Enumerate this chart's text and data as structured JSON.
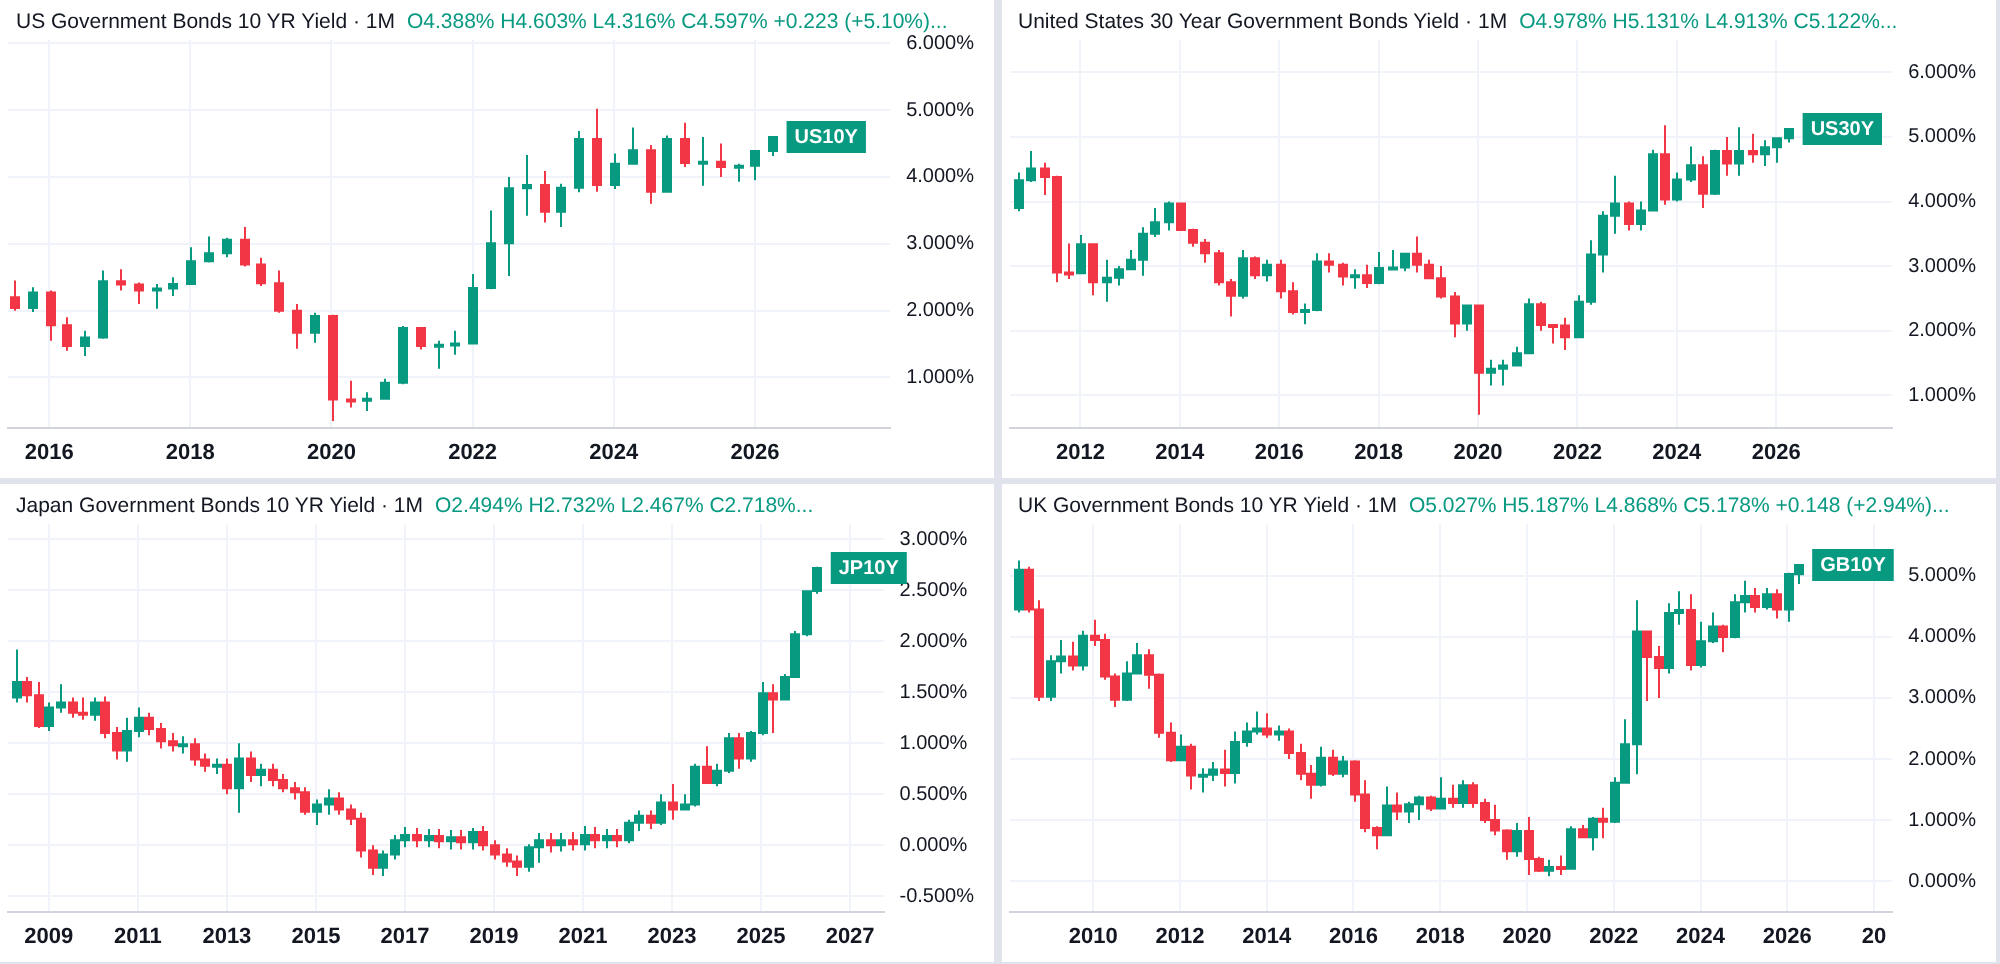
{
  "chart_data": [
    {
      "type": "candlestick",
      "title": "US Government Bonds 10 YR Yield · 1M",
      "subtitle": "O4.388%  H4.603%  L4.316%  C4.597%  +0.223 (+5.10%)...",
      "colors": [
        "#f23645",
        "#089981",
        "#f23645",
        "#f23645",
        "#089981",
        "#089981",
        "#f23645",
        "#f23645",
        "#089981",
        "#089981",
        "#089981",
        "#089981",
        "#089981",
        "#f23645",
        "#f23645",
        "#f23645",
        "#f23645",
        "#089981",
        "#f23645",
        "#f23645",
        "#089981",
        "#089981",
        "#089981",
        "#f23645",
        "#089981",
        "#089981",
        "#089981",
        "#089981",
        "#089981",
        "#089981",
        "#f23645",
        "#089981",
        "#089981",
        "#f23645",
        "#089981",
        "#089981",
        "#f23645",
        "#089981",
        "#f23645",
        "#089981",
        "#f23645",
        "#089981",
        "#089981",
        "#089981"
      ],
      "grid": true,
      "xlim": [
        "2015-06",
        "2027-12"
      ],
      "xticks": [
        "2016",
        "2018",
        "2020",
        "2022",
        "2024",
        "2026"
      ],
      "ylim": [
        0.25,
        6.05
      ],
      "yticks": [
        {
          "value": 1,
          "label": "1.000%"
        },
        {
          "value": 2,
          "label": "2.000%"
        },
        {
          "value": 3,
          "label": "3.000%"
        },
        {
          "value": 4,
          "label": "4.000%"
        },
        {
          "value": 5,
          "label": "5.000%"
        },
        {
          "value": 6,
          "label": "6.000%"
        }
      ],
      "annotations": [
        {
          "text": "US10Y",
          "y": 4.597
        }
      ],
      "x": [
        "2015-07",
        "2015-10",
        "2016-01",
        "2016-04",
        "2016-07",
        "2016-10",
        "2017-01",
        "2017-04",
        "2017-07",
        "2017-10",
        "2018-01",
        "2018-04",
        "2018-07",
        "2018-10",
        "2019-01",
        "2019-04",
        "2019-07",
        "2019-10",
        "2020-01",
        "2020-04",
        "2020-07",
        "2020-10",
        "2021-01",
        "2021-04",
        "2021-07",
        "2021-10",
        "2022-01",
        "2022-04",
        "2022-07",
        "2022-10",
        "2023-01",
        "2023-04",
        "2023-07",
        "2023-10",
        "2024-01",
        "2024-04",
        "2024-07",
        "2024-10",
        "2025-01",
        "2025-04",
        "2025-07",
        "2025-10",
        "2026-01",
        "2026-04"
      ],
      "ohlc": [
        [
          2.2,
          2.45,
          2.0,
          2.04
        ],
        [
          2.04,
          2.35,
          1.98,
          2.27
        ],
        [
          2.27,
          2.3,
          1.55,
          1.78
        ],
        [
          1.78,
          1.9,
          1.4,
          1.47
        ],
        [
          1.47,
          1.7,
          1.32,
          1.6
        ],
        [
          1.6,
          2.6,
          1.58,
          2.44
        ],
        [
          2.44,
          2.62,
          2.3,
          2.39
        ],
        [
          2.39,
          2.42,
          2.1,
          2.3
        ],
        [
          2.3,
          2.4,
          2.03,
          2.33
        ],
        [
          2.33,
          2.5,
          2.22,
          2.4
        ],
        [
          2.4,
          2.95,
          2.4,
          2.74
        ],
        [
          2.74,
          3.11,
          2.72,
          2.86
        ],
        [
          2.86,
          3.09,
          2.8,
          3.06
        ],
        [
          3.06,
          3.25,
          2.66,
          2.69
        ],
        [
          2.69,
          2.79,
          2.37,
          2.41
        ],
        [
          2.41,
          2.6,
          1.97,
          2.0
        ],
        [
          2.0,
          2.1,
          1.43,
          1.67
        ],
        [
          1.67,
          1.97,
          1.52,
          1.92
        ],
        [
          1.92,
          1.94,
          0.35,
          0.67
        ],
        [
          0.67,
          0.95,
          0.55,
          0.66
        ],
        [
          0.66,
          0.78,
          0.5,
          0.68
        ],
        [
          0.68,
          0.98,
          0.68,
          0.92
        ],
        [
          0.92,
          1.77,
          0.9,
          1.74
        ],
        [
          1.74,
          1.74,
          1.42,
          1.47
        ],
        [
          1.47,
          1.55,
          1.13,
          1.49
        ],
        [
          1.49,
          1.7,
          1.34,
          1.51
        ],
        [
          1.51,
          2.55,
          1.5,
          2.34
        ],
        [
          2.34,
          3.5,
          2.32,
          3.01
        ],
        [
          3.01,
          4.0,
          2.52,
          3.83
        ],
        [
          3.83,
          4.33,
          3.42,
          3.88
        ],
        [
          3.88,
          4.09,
          3.32,
          3.48
        ],
        [
          3.48,
          3.9,
          3.25,
          3.84
        ],
        [
          3.84,
          4.69,
          3.77,
          4.57
        ],
        [
          4.57,
          5.02,
          3.78,
          3.88
        ],
        [
          3.88,
          4.35,
          3.82,
          4.2
        ],
        [
          4.2,
          4.74,
          4.19,
          4.4
        ],
        [
          4.4,
          4.48,
          3.6,
          3.78
        ],
        [
          3.78,
          4.62,
          3.77,
          4.57
        ],
        [
          4.57,
          4.81,
          4.15,
          4.21
        ],
        [
          4.21,
          4.6,
          3.87,
          4.23
        ],
        [
          4.23,
          4.5,
          4.0,
          4.15
        ],
        [
          4.15,
          4.2,
          3.93,
          4.17
        ],
        [
          4.17,
          4.4,
          3.95,
          4.39
        ],
        [
          4.388,
          4.603,
          4.316,
          4.597
        ]
      ]
    },
    {
      "type": "candlestick",
      "title": "United States 30 Year Government Bonds Yield · 1M",
      "subtitle": "O4.978%  H5.131%  L4.913%  C5.122%...",
      "colors": [
        "#089981",
        "#089981",
        "#f23645",
        "#f23645",
        "#f23645",
        "#089981",
        "#f23645",
        "#089981",
        "#089981",
        "#089981",
        "#089981",
        "#089981",
        "#089981",
        "#f23645",
        "#f23645",
        "#f23645",
        "#f23645",
        "#f23645",
        "#089981",
        "#f23645",
        "#089981",
        "#f23645",
        "#f23645",
        "#089981",
        "#089981",
        "#f23645",
        "#f23645",
        "#089981",
        "#f23645",
        "#089981",
        "#089981",
        "#089981",
        "#f23645",
        "#f23645",
        "#f23645",
        "#f23645",
        "#089981",
        "#f23645",
        "#089981",
        "#089981",
        "#089981",
        "#089981",
        "#f23645",
        "#f23645",
        "#f23645",
        "#089981",
        "#089981",
        "#089981",
        "#089981",
        "#f23645",
        "#089981",
        "#089981",
        "#f23645",
        "#089981",
        "#089981",
        "#f23645",
        "#089981",
        "#f23645",
        "#089981",
        "#f23645",
        "#089981",
        "#089981",
        "#089981"
      ],
      "grid": true,
      "xlim": [
        "2010-08",
        "2028-05"
      ],
      "xticks": [
        "2012",
        "2014",
        "2016",
        "2018",
        "2020",
        "2022",
        "2024",
        "2026"
      ],
      "ylim": [
        0.5,
        6.5
      ],
      "yticks": [
        {
          "value": 1,
          "label": "1.000%"
        },
        {
          "value": 2,
          "label": "2.000%"
        },
        {
          "value": 3,
          "label": "3.000%"
        },
        {
          "value": 4,
          "label": "4.000%"
        },
        {
          "value": 5,
          "label": "5.000%"
        },
        {
          "value": 6,
          "label": "6.000%"
        }
      ],
      "annotations": [
        {
          "text": "US30Y",
          "y": 5.122
        }
      ],
      "x": [
        "2010-10",
        "2011-01",
        "2011-04",
        "2011-07",
        "2011-10",
        "2012-01",
        "2012-04",
        "2012-07",
        "2012-10",
        "2013-01",
        "2013-04",
        "2013-07",
        "2013-10",
        "2014-01",
        "2014-04",
        "2014-07",
        "2014-10",
        "2015-01",
        "2015-04",
        "2015-07",
        "2015-10",
        "2016-01",
        "2016-04",
        "2016-07",
        "2016-10",
        "2017-01",
        "2017-04",
        "2017-07",
        "2017-10",
        "2018-01",
        "2018-04",
        "2018-07",
        "2018-10",
        "2019-01",
        "2019-04",
        "2019-07",
        "2019-10",
        "2020-01",
        "2020-04",
        "2020-07",
        "2020-10",
        "2021-01",
        "2021-04",
        "2021-07",
        "2021-10",
        "2022-01",
        "2022-04",
        "2022-07",
        "2022-10",
        "2023-01",
        "2023-04",
        "2023-07",
        "2023-10",
        "2024-01",
        "2024-04",
        "2024-07",
        "2024-10",
        "2025-01",
        "2025-04",
        "2025-07",
        "2025-10",
        "2026-01",
        "2026-04"
      ],
      "ohlc": [
        [
          3.9,
          4.45,
          3.85,
          4.33
        ],
        [
          4.33,
          4.78,
          4.3,
          4.51
        ],
        [
          4.51,
          4.6,
          4.1,
          4.38
        ],
        [
          4.38,
          4.4,
          2.75,
          2.9
        ],
        [
          2.9,
          3.35,
          2.8,
          2.89
        ],
        [
          2.89,
          3.48,
          2.88,
          3.34
        ],
        [
          3.34,
          3.35,
          2.55,
          2.75
        ],
        [
          2.75,
          3.1,
          2.45,
          2.82
        ],
        [
          2.82,
          3.0,
          2.7,
          2.95
        ],
        [
          2.95,
          3.25,
          2.95,
          3.1
        ],
        [
          3.1,
          3.6,
          2.85,
          3.5
        ],
        [
          3.5,
          3.9,
          3.45,
          3.68
        ],
        [
          3.68,
          4.0,
          3.55,
          3.97
        ],
        [
          3.97,
          3.97,
          3.55,
          3.56
        ],
        [
          3.56,
          3.58,
          3.3,
          3.36
        ],
        [
          3.36,
          3.42,
          3.05,
          3.2
        ],
        [
          3.2,
          3.25,
          2.7,
          2.75
        ],
        [
          2.75,
          2.8,
          2.22,
          2.54
        ],
        [
          2.54,
          3.25,
          2.5,
          3.12
        ],
        [
          3.12,
          3.15,
          2.8,
          2.86
        ],
        [
          2.86,
          3.1,
          2.76,
          3.02
        ],
        [
          3.02,
          3.1,
          2.5,
          2.61
        ],
        [
          2.61,
          2.75,
          2.25,
          2.29
        ],
        [
          2.29,
          2.42,
          2.1,
          2.32
        ],
        [
          2.32,
          3.2,
          2.3,
          3.07
        ],
        [
          3.07,
          3.2,
          2.9,
          3.02
        ],
        [
          3.02,
          3.05,
          2.7,
          2.84
        ],
        [
          2.84,
          2.95,
          2.65,
          2.86
        ],
        [
          2.86,
          3.02,
          2.66,
          2.74
        ],
        [
          2.74,
          3.22,
          2.72,
          2.97
        ],
        [
          2.97,
          3.25,
          2.95,
          2.98
        ],
        [
          2.98,
          3.2,
          2.92,
          3.19
        ],
        [
          3.19,
          3.46,
          2.9,
          3.02
        ],
        [
          3.02,
          3.1,
          2.8,
          2.81
        ],
        [
          2.81,
          3.0,
          2.5,
          2.53
        ],
        [
          2.53,
          2.6,
          1.9,
          2.11
        ],
        [
          2.11,
          2.4,
          2.0,
          2.39
        ],
        [
          2.39,
          2.4,
          0.7,
          1.35
        ],
        [
          1.35,
          1.55,
          1.15,
          1.41
        ],
        [
          1.41,
          1.55,
          1.15,
          1.46
        ],
        [
          1.46,
          1.75,
          1.45,
          1.65
        ],
        [
          1.65,
          2.5,
          1.65,
          2.41
        ],
        [
          2.41,
          2.45,
          2.0,
          2.09
        ],
        [
          2.09,
          2.1,
          1.8,
          2.08
        ],
        [
          2.08,
          2.2,
          1.7,
          1.9
        ],
        [
          1.9,
          2.55,
          1.9,
          2.45
        ],
        [
          2.45,
          3.4,
          2.4,
          3.18
        ],
        [
          3.18,
          3.85,
          2.9,
          3.78
        ],
        [
          3.78,
          4.4,
          3.5,
          3.97
        ],
        [
          3.97,
          4.0,
          3.55,
          3.65
        ],
        [
          3.65,
          4.0,
          3.55,
          3.86
        ],
        [
          3.86,
          4.8,
          3.85,
          4.73
        ],
        [
          4.73,
          5.18,
          3.95,
          4.03
        ],
        [
          4.03,
          4.45,
          4.0,
          4.34
        ],
        [
          4.34,
          4.85,
          4.3,
          4.56
        ],
        [
          4.56,
          4.7,
          3.9,
          4.12
        ],
        [
          4.12,
          4.8,
          4.1,
          4.78
        ],
        [
          4.78,
          5.0,
          4.4,
          4.59
        ],
        [
          4.59,
          5.15,
          4.4,
          4.78
        ],
        [
          4.78,
          5.05,
          4.6,
          4.73
        ],
        [
          4.73,
          4.95,
          4.55,
          4.84
        ],
        [
          4.84,
          4.98,
          4.6,
          4.98
        ],
        [
          4.978,
          5.131,
          4.913,
          5.122
        ]
      ]
    },
    {
      "type": "candlestick",
      "title": "Japan Government Bonds 10 YR Yield · 1M",
      "subtitle": "O2.494%  H2.732%  L2.467%  C2.718%...",
      "colors": [
        "#089981",
        "#f23645",
        "#f23645",
        "#089981",
        "#089981",
        "#f23645",
        "#f23645",
        "#089981",
        "#f23645",
        "#f23645",
        "#089981",
        "#089981",
        "#f23645",
        "#f23645",
        "#f23645",
        "#089981",
        "#f23645",
        "#f23645",
        "#089981",
        "#f23645",
        "#089981",
        "#f23645",
        "#089981",
        "#f23645",
        "#f23645",
        "#f23645",
        "#f23645",
        "#089981",
        "#089981",
        "#f23645",
        "#f23645",
        "#f23645",
        "#f23645",
        "#089981",
        "#089981",
        "#089981",
        "#f23645",
        "#089981",
        "#f23645",
        "#089981",
        "#f23645",
        "#089981",
        "#f23645",
        "#f23645",
        "#f23645",
        "#f23645",
        "#089981",
        "#089981",
        "#f23645",
        "#089981",
        "#f23645",
        "#089981",
        "#f23645",
        "#089981",
        "#f23645",
        "#089981",
        "#089981",
        "#f23645",
        "#089981",
        "#f23645",
        "#089981",
        "#089981",
        "#f23645",
        "#089981",
        "#089981",
        "#f23645",
        "#089981",
        "#089981",
        "#f23645",
        "#089981",
        "#089981",
        "#089981",
        "#089981"
      ],
      "grid": true,
      "xlim": [
        "2008-02",
        "2027-10"
      ],
      "xticks": [
        "2009",
        "2011",
        "2013",
        "2015",
        "2017",
        "2019",
        "2021",
        "2023",
        "2025",
        "2027"
      ],
      "ylim": [
        -0.65,
        3.15
      ],
      "yticks": [
        {
          "value": -0.5,
          "label": "-0.500%"
        },
        {
          "value": 0,
          "label": "0.000%"
        },
        {
          "value": 0.5,
          "label": "0.500%"
        },
        {
          "value": 1,
          "label": "1.000%"
        },
        {
          "value": 1.5,
          "label": "1.500%"
        },
        {
          "value": 2,
          "label": "2.000%"
        },
        {
          "value": 2.5,
          "label": "2.500%"
        },
        {
          "value": 3,
          "label": "3.000%"
        }
      ],
      "annotations": [
        {
          "text": "JP10Y",
          "y": 2.718
        }
      ],
      "x": [
        "2008-04",
        "2008-07",
        "2008-10",
        "2009-01",
        "2009-04",
        "2009-07",
        "2009-10",
        "2010-01",
        "2010-04",
        "2010-07",
        "2010-10",
        "2011-01",
        "2011-04",
        "2011-07",
        "2011-10",
        "2012-01",
        "2012-04",
        "2012-07",
        "2012-10",
        "2013-01",
        "2013-04",
        "2013-07",
        "2013-10",
        "2014-01",
        "2014-04",
        "2014-07",
        "2014-10",
        "2015-01",
        "2015-04",
        "2015-07",
        "2015-10",
        "2016-01",
        "2016-04",
        "2016-07",
        "2016-10",
        "2017-01",
        "2017-04",
        "2017-07",
        "2017-10",
        "2018-01",
        "2018-04",
        "2018-07",
        "2018-10",
        "2019-01",
        "2019-04",
        "2019-07",
        "2019-10",
        "2020-01",
        "2020-04",
        "2020-07",
        "2020-10",
        "2021-01",
        "2021-04",
        "2021-07",
        "2021-10",
        "2022-01",
        "2022-04",
        "2022-07",
        "2022-10",
        "2023-01",
        "2023-04",
        "2023-07",
        "2023-10",
        "2024-01",
        "2024-04",
        "2024-07",
        "2024-10",
        "2025-01",
        "2025-04",
        "2025-07",
        "2025-10",
        "2026-01",
        "2026-04"
      ],
      "ohlc": [
        [
          1.45,
          1.92,
          1.4,
          1.6
        ],
        [
          1.6,
          1.65,
          1.4,
          1.47
        ],
        [
          1.47,
          1.6,
          1.15,
          1.17
        ],
        [
          1.17,
          1.4,
          1.12,
          1.35
        ],
        [
          1.35,
          1.58,
          1.3,
          1.4
        ],
        [
          1.4,
          1.45,
          1.25,
          1.3
        ],
        [
          1.3,
          1.45,
          1.23,
          1.28
        ],
        [
          1.28,
          1.45,
          1.22,
          1.4
        ],
        [
          1.4,
          1.46,
          1.05,
          1.1
        ],
        [
          1.1,
          1.16,
          0.84,
          0.93
        ],
        [
          0.93,
          1.25,
          0.82,
          1.12
        ],
        [
          1.12,
          1.35,
          1.06,
          1.25
        ],
        [
          1.25,
          1.3,
          1.08,
          1.14
        ],
        [
          1.14,
          1.2,
          0.95,
          1.02
        ],
        [
          1.02,
          1.1,
          0.92,
          0.98
        ],
        [
          0.98,
          1.07,
          0.9,
          0.99
        ],
        [
          0.99,
          1.05,
          0.78,
          0.84
        ],
        [
          0.84,
          0.9,
          0.72,
          0.78
        ],
        [
          0.78,
          0.85,
          0.7,
          0.79
        ],
        [
          0.79,
          0.85,
          0.5,
          0.56
        ],
        [
          0.56,
          1.0,
          0.32,
          0.85
        ],
        [
          0.85,
          0.92,
          0.62,
          0.69
        ],
        [
          0.69,
          0.8,
          0.58,
          0.74
        ],
        [
          0.74,
          0.8,
          0.58,
          0.64
        ],
        [
          0.64,
          0.7,
          0.52,
          0.56
        ],
        [
          0.56,
          0.62,
          0.45,
          0.52
        ],
        [
          0.52,
          0.57,
          0.3,
          0.33
        ],
        [
          0.33,
          0.45,
          0.2,
          0.4
        ],
        [
          0.4,
          0.55,
          0.3,
          0.46
        ],
        [
          0.46,
          0.52,
          0.3,
          0.35
        ],
        [
          0.35,
          0.4,
          0.2,
          0.26
        ],
        [
          0.26,
          0.32,
          -0.12,
          -0.05
        ],
        [
          -0.05,
          0.0,
          -0.29,
          -0.22
        ],
        [
          -0.22,
          -0.05,
          -0.3,
          -0.09
        ],
        [
          -0.09,
          0.1,
          -0.14,
          0.05
        ],
        [
          0.05,
          0.18,
          -0.02,
          0.1
        ],
        [
          0.1,
          0.17,
          -0.02,
          0.05
        ],
        [
          0.05,
          0.16,
          -0.02,
          0.09
        ],
        [
          0.09,
          0.16,
          -0.03,
          0.04
        ],
        [
          0.04,
          0.15,
          -0.04,
          0.08
        ],
        [
          0.08,
          0.15,
          -0.04,
          0.03
        ],
        [
          0.03,
          0.17,
          -0.04,
          0.13
        ],
        [
          0.13,
          0.19,
          -0.05,
          0.0
        ],
        [
          0.0,
          0.05,
          -0.14,
          -0.09
        ],
        [
          -0.09,
          -0.03,
          -0.21,
          -0.16
        ],
        [
          -0.16,
          -0.1,
          -0.3,
          -0.21
        ],
        [
          -0.21,
          0.01,
          -0.26,
          -0.02
        ],
        [
          -0.02,
          0.12,
          -0.17,
          0.05
        ],
        [
          0.05,
          0.12,
          -0.07,
          0.0
        ],
        [
          0.0,
          0.12,
          -0.06,
          0.05
        ],
        [
          0.05,
          0.13,
          -0.05,
          0.01
        ],
        [
          0.01,
          0.19,
          -0.05,
          0.1
        ],
        [
          0.1,
          0.18,
          -0.03,
          0.05
        ],
        [
          0.05,
          0.16,
          -0.03,
          0.09
        ],
        [
          0.09,
          0.16,
          -0.02,
          0.05
        ],
        [
          0.05,
          0.25,
          0.02,
          0.22
        ],
        [
          0.22,
          0.34,
          0.14,
          0.29
        ],
        [
          0.29,
          0.34,
          0.16,
          0.22
        ],
        [
          0.22,
          0.5,
          0.2,
          0.42
        ],
        [
          0.42,
          0.6,
          0.25,
          0.35
        ],
        [
          0.35,
          0.5,
          0.35,
          0.4
        ],
        [
          0.4,
          0.8,
          0.38,
          0.77
        ],
        [
          0.77,
          0.97,
          0.6,
          0.61
        ],
        [
          0.61,
          0.8,
          0.58,
          0.73
        ],
        [
          0.73,
          1.1,
          0.71,
          1.05
        ],
        [
          1.05,
          1.1,
          0.75,
          0.85
        ],
        [
          0.85,
          1.12,
          0.82,
          1.1
        ],
        [
          1.1,
          1.6,
          1.08,
          1.49
        ],
        [
          1.49,
          1.58,
          1.1,
          1.43
        ],
        [
          1.43,
          1.68,
          1.42,
          1.65
        ],
        [
          1.65,
          2.1,
          1.64,
          2.07
        ],
        [
          2.07,
          2.5,
          2.05,
          2.49
        ],
        [
          2.494,
          2.732,
          2.467,
          2.718
        ]
      ]
    },
    {
      "type": "candlestick",
      "title": "UK Government Bonds 10 YR Yield · 1M",
      "subtitle": "O5.027%  H5.187%  L4.868%  C5.178%  +0.148 (+2.94%)...",
      "colors": [
        "#089981",
        "#f23645",
        "#f23645",
        "#089981",
        "#089981",
        "#f23645",
        "#089981",
        "#f23645",
        "#f23645",
        "#f23645",
        "#089981",
        "#089981",
        "#f23645",
        "#f23645",
        "#f23645",
        "#089981",
        "#f23645",
        "#089981",
        "#089981",
        "#f23645",
        "#089981",
        "#089981",
        "#089981",
        "#f23645",
        "#089981",
        "#f23645",
        "#f23645",
        "#f23645",
        "#089981",
        "#f23645",
        "#089981",
        "#f23645",
        "#f23645",
        "#f23645",
        "#089981",
        "#f23645",
        "#089981",
        "#089981",
        "#f23645",
        "#089981",
        "#f23645",
        "#089981",
        "#f23645",
        "#f23645",
        "#f23645",
        "#f23645",
        "#089981",
        "#f23645",
        "#f23645",
        "#089981",
        "#f23645",
        "#089981",
        "#f23645",
        "#089981",
        "#f23645",
        "#089981",
        "#089981",
        "#089981",
        "#f23645",
        "#f23645",
        "#089981",
        "#089981",
        "#f23645",
        "#089981",
        "#089981",
        "#f23645",
        "#089981",
        "#089981",
        "#f23645",
        "#089981",
        "#f23645",
        "#089981",
        "#089981"
      ],
      "grid": true,
      "xlim": [
        "2008-02",
        "2028-06"
      ],
      "xticks": [
        "2010",
        "2012",
        "2014",
        "2016",
        "2018",
        "2020",
        "2022",
        "2024",
        "2026",
        {
          "value": "2028",
          "label": "20"
        }
      ],
      "ylim": [
        -0.5,
        5.85
      ],
      "yticks": [
        {
          "value": 0,
          "label": "0.000%"
        },
        {
          "value": 1,
          "label": "1.000%"
        },
        {
          "value": 2,
          "label": "2.000%"
        },
        {
          "value": 3,
          "label": "3.000%"
        },
        {
          "value": 4,
          "label": "4.000%"
        },
        {
          "value": 5,
          "label": "5.000%"
        }
      ],
      "annotations": [
        {
          "text": "GB10Y",
          "y": 5.178
        }
      ],
      "x": [
        "2008-04",
        "2008-07",
        "2008-10",
        "2009-01",
        "2009-04",
        "2009-07",
        "2009-10",
        "2010-01",
        "2010-04",
        "2010-07",
        "2010-10",
        "2011-01",
        "2011-04",
        "2011-07",
        "2011-10",
        "2012-01",
        "2012-04",
        "2012-07",
        "2012-10",
        "2013-01",
        "2013-04",
        "2013-07",
        "2013-10",
        "2014-01",
        "2014-04",
        "2014-07",
        "2014-10",
        "2015-01",
        "2015-04",
        "2015-07",
        "2015-10",
        "2016-01",
        "2016-04",
        "2016-07",
        "2016-10",
        "2017-01",
        "2017-04",
        "2017-07",
        "2017-10",
        "2018-01",
        "2018-04",
        "2018-07",
        "2018-10",
        "2019-01",
        "2019-04",
        "2019-07",
        "2019-10",
        "2020-01",
        "2020-04",
        "2020-07",
        "2020-10",
        "2021-01",
        "2021-04",
        "2021-07",
        "2021-10",
        "2022-01",
        "2022-04",
        "2022-07",
        "2022-10",
        "2023-01",
        "2023-04",
        "2023-07",
        "2023-10",
        "2024-01",
        "2024-04",
        "2024-07",
        "2024-10",
        "2025-01",
        "2025-04",
        "2025-07",
        "2025-10",
        "2026-01",
        "2026-04"
      ],
      "ohlc": [
        [
          4.45,
          5.25,
          4.4,
          5.1
        ],
        [
          5.1,
          5.15,
          4.4,
          4.45
        ],
        [
          4.45,
          4.6,
          2.95,
          3.02
        ],
        [
          3.02,
          3.7,
          2.95,
          3.6
        ],
        [
          3.6,
          3.95,
          3.4,
          3.68
        ],
        [
          3.68,
          3.92,
          3.45,
          3.53
        ],
        [
          3.53,
          4.1,
          3.45,
          4.02
        ],
        [
          4.02,
          4.28,
          3.85,
          3.95
        ],
        [
          3.95,
          4.05,
          3.3,
          3.35
        ],
        [
          3.35,
          3.4,
          2.85,
          2.97
        ],
        [
          2.97,
          3.6,
          2.95,
          3.4
        ],
        [
          3.4,
          3.9,
          3.4,
          3.7
        ],
        [
          3.7,
          3.8,
          3.15,
          3.38
        ],
        [
          3.38,
          3.4,
          2.35,
          2.43
        ],
        [
          2.43,
          2.6,
          1.95,
          1.98
        ],
        [
          1.98,
          2.4,
          1.98,
          2.2
        ],
        [
          2.2,
          2.25,
          1.5,
          1.73
        ],
        [
          1.73,
          1.85,
          1.45,
          1.74
        ],
        [
          1.74,
          1.95,
          1.64,
          1.83
        ],
        [
          1.83,
          2.15,
          1.55,
          1.77
        ],
        [
          1.77,
          2.45,
          1.6,
          2.28
        ],
        [
          2.28,
          2.6,
          2.2,
          2.45
        ],
        [
          2.45,
          2.78,
          2.4,
          2.5
        ],
        [
          2.5,
          2.75,
          2.35,
          2.4
        ],
        [
          2.4,
          2.55,
          2.3,
          2.45
        ],
        [
          2.45,
          2.5,
          2.0,
          2.1
        ],
        [
          2.1,
          2.25,
          1.65,
          1.76
        ],
        [
          1.76,
          1.9,
          1.35,
          1.58
        ],
        [
          1.58,
          2.2,
          1.55,
          2.02
        ],
        [
          2.02,
          2.15,
          1.72,
          1.76
        ],
        [
          1.76,
          2.05,
          1.7,
          1.96
        ],
        [
          1.96,
          1.98,
          1.3,
          1.42
        ],
        [
          1.42,
          1.65,
          0.8,
          0.87
        ],
        [
          0.87,
          0.9,
          0.52,
          0.75
        ],
        [
          0.75,
          1.55,
          0.74,
          1.24
        ],
        [
          1.24,
          1.45,
          1.0,
          1.14
        ],
        [
          1.14,
          1.3,
          0.95,
          1.26
        ],
        [
          1.26,
          1.4,
          1.0,
          1.37
        ],
        [
          1.37,
          1.4,
          1.15,
          1.19
        ],
        [
          1.19,
          1.7,
          1.19,
          1.35
        ],
        [
          1.35,
          1.58,
          1.2,
          1.28
        ],
        [
          1.28,
          1.65,
          1.2,
          1.57
        ],
        [
          1.57,
          1.62,
          1.2,
          1.28
        ],
        [
          1.28,
          1.35,
          0.95,
          1.0
        ],
        [
          1.0,
          1.25,
          0.75,
          0.83
        ],
        [
          0.83,
          0.85,
          0.35,
          0.49
        ],
        [
          0.49,
          0.95,
          0.4,
          0.82
        ],
        [
          0.82,
          1.05,
          0.1,
          0.36
        ],
        [
          0.36,
          0.4,
          0.15,
          0.17
        ],
        [
          0.17,
          0.35,
          0.08,
          0.23
        ],
        [
          0.23,
          0.42,
          0.1,
          0.2
        ],
        [
          0.2,
          0.9,
          0.2,
          0.85
        ],
        [
          0.85,
          0.92,
          0.7,
          0.72
        ],
        [
          0.72,
          1.05,
          0.5,
          1.02
        ],
        [
          1.02,
          1.2,
          0.7,
          0.97
        ],
        [
          0.97,
          1.7,
          0.95,
          1.61
        ],
        [
          1.61,
          2.65,
          1.6,
          2.24
        ],
        [
          2.24,
          4.6,
          1.75,
          4.09
        ],
        [
          4.09,
          4.1,
          2.95,
          3.67
        ],
        [
          3.67,
          3.85,
          3.0,
          3.49
        ],
        [
          3.49,
          4.55,
          3.4,
          4.39
        ],
        [
          4.39,
          4.75,
          4.2,
          4.44
        ],
        [
          4.44,
          4.7,
          3.45,
          3.54
        ],
        [
          3.54,
          4.25,
          3.5,
          3.93
        ],
        [
          3.93,
          4.4,
          3.9,
          4.17
        ],
        [
          4.17,
          4.2,
          3.75,
          4.0
        ],
        [
          4.0,
          4.7,
          3.98,
          4.57
        ],
        [
          4.57,
          4.92,
          4.4,
          4.67
        ],
        [
          4.67,
          4.8,
          4.4,
          4.49
        ],
        [
          4.49,
          4.8,
          4.45,
          4.7
        ],
        [
          4.7,
          4.78,
          4.3,
          4.45
        ],
        [
          4.45,
          5.05,
          4.25,
          5.03
        ],
        [
          5.027,
          5.187,
          4.868,
          5.178
        ]
      ]
    }
  ]
}
